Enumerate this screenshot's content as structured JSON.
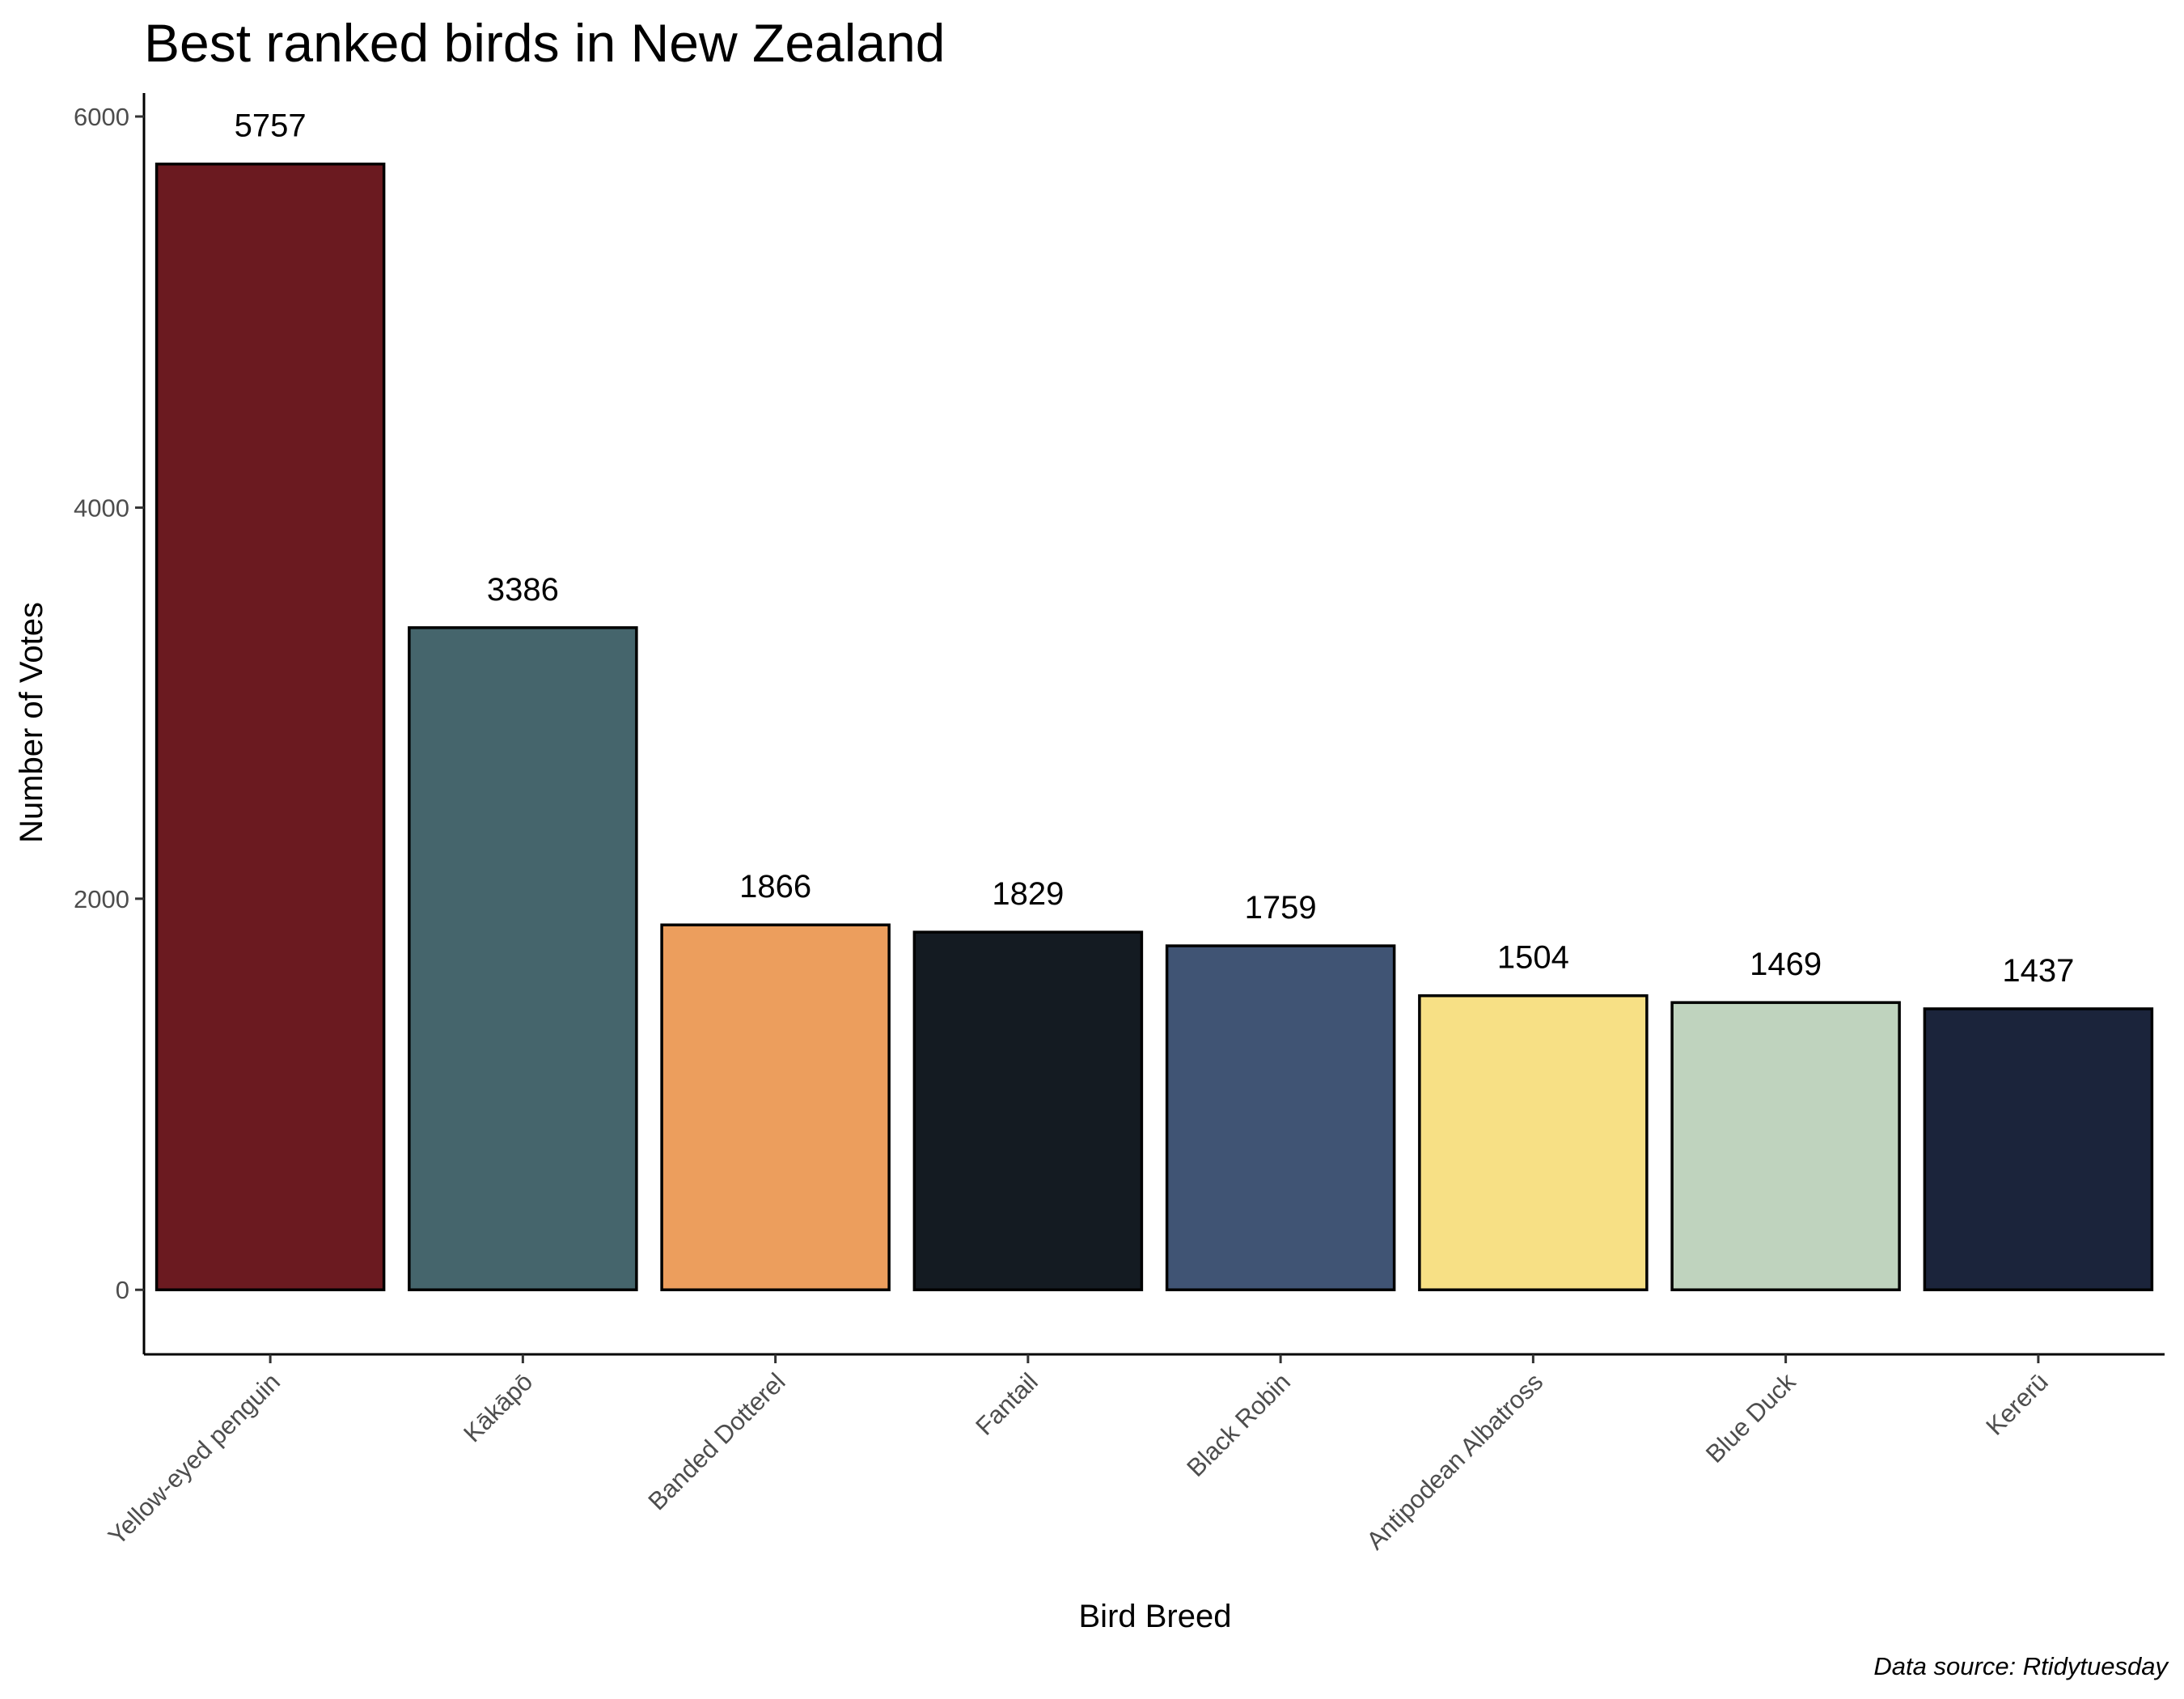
{
  "chart_data": {
    "type": "bar",
    "title": "Best ranked birds in New Zealand",
    "xlabel": "Bird Breed",
    "ylabel": "Number of Votes",
    "caption": "Data source: Rtidytuesday",
    "categories": [
      "Yellow-eyed penguin",
      "Kākāpō",
      "Banded Dotterel",
      "Fantail",
      "Black Robin",
      "Antipodean Albatross",
      "Blue Duck",
      "Kererū"
    ],
    "values": [
      5757,
      3386,
      1866,
      1829,
      1759,
      1504,
      1469,
      1437
    ],
    "colors": [
      "#6B1A20",
      "#45656C",
      "#EC9E5D",
      "#141B22",
      "#405474",
      "#F7E085",
      "#BFD3BE",
      "#1B243B"
    ],
    "ylim": [
      -330,
      6120
    ],
    "yticks": [
      0,
      2000,
      4000,
      6000
    ],
    "grid": false,
    "legend": "none"
  }
}
